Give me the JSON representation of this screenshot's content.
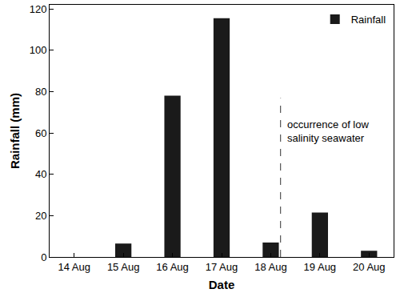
{
  "chart_data": {
    "type": "bar",
    "x_label": "Date",
    "y_label": "Rainfall (mm)",
    "categories": [
      "14 Aug",
      "15 Aug",
      "16 Aug",
      "17 Aug",
      "18 Aug",
      "19 Aug",
      "20 Aug"
    ],
    "series": [
      {
        "name": "Rainfall",
        "color": "#1a1a1a",
        "values": [
          0,
          6.5,
          78,
          115.5,
          7,
          21.5,
          3
        ]
      }
    ],
    "ylim": [
      0,
      122
    ],
    "yticks": [
      0,
      20,
      40,
      60,
      80,
      100,
      120
    ],
    "grid": false,
    "legend": "upper right",
    "annotations": [
      {
        "text": [
          "occurrence of low",
          "salinity seawater"
        ],
        "x": "18 Aug",
        "line_style": "dashed"
      }
    ]
  }
}
